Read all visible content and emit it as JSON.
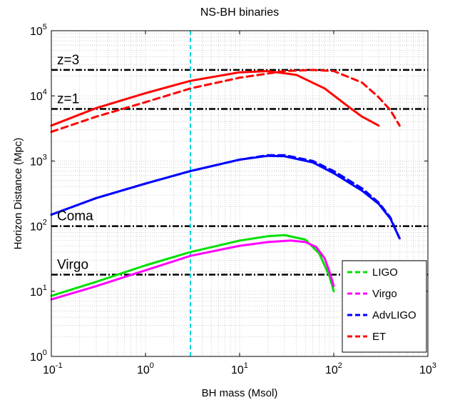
{
  "chart_data": {
    "type": "line",
    "title": "NS-BH binaries",
    "xlabel": "BH mass (Msol)",
    "ylabel": "Horizon Distance (Mpc)",
    "xscale": "log",
    "yscale": "log",
    "xlim": [
      0.1,
      1000
    ],
    "ylim": [
      1,
      100000
    ],
    "x_ticks": [
      {
        "base": "10",
        "exp": "-1"
      },
      {
        "base": "10",
        "exp": "0"
      },
      {
        "base": "10",
        "exp": "1"
      },
      {
        "base": "10",
        "exp": "2"
      },
      {
        "base": "10",
        "exp": "3"
      }
    ],
    "y_ticks": [
      {
        "base": "10",
        "exp": "0"
      },
      {
        "base": "10",
        "exp": "1"
      },
      {
        "base": "10",
        "exp": "2"
      },
      {
        "base": "10",
        "exp": "3"
      },
      {
        "base": "10",
        "exp": "4"
      },
      {
        "base": "10",
        "exp": "5"
      }
    ],
    "grid": true,
    "legend_position": "bottom-right",
    "reference_lines": [
      {
        "label": "z=3",
        "y": 25000
      },
      {
        "label": "z=1",
        "y": 6300
      },
      {
        "label": "Coma",
        "y": 100
      },
      {
        "label": "Virgo",
        "y": 18
      }
    ],
    "vertical_line": {
      "x": 3,
      "color": "#00d8d8"
    },
    "series": [
      {
        "name": "LIGO",
        "color": "#00e000",
        "legend_dashed": true,
        "lines": [
          {
            "style": "solid",
            "x": [
              0.1,
              0.3,
              1,
              3,
              10,
              20,
              30,
              50,
              70,
              90,
              100
            ],
            "y": [
              8.5,
              14,
              25,
              40,
              60,
              70,
              73,
              62,
              38,
              17,
              10
            ]
          }
        ]
      },
      {
        "name": "Virgo",
        "color": "#ff00ff",
        "legend_dashed": true,
        "lines": [
          {
            "style": "solid",
            "x": [
              0.1,
              0.3,
              1,
              3,
              10,
              20,
              35,
              50,
              65,
              80,
              90,
              100
            ],
            "y": [
              7.5,
              12,
              21,
              35,
              50,
              57,
              60,
              57,
              48,
              32,
              20,
              12
            ]
          }
        ]
      },
      {
        "name": "AdvLIGO",
        "color": "#0000ff",
        "legend_dashed": true,
        "lines": [
          {
            "style": "solid",
            "x": [
              0.1,
              0.3,
              1,
              3,
              10,
              20,
              30,
              60,
              100,
              200,
              300,
              400,
              500
            ],
            "y": [
              150,
              270,
              450,
              700,
              1050,
              1200,
              1180,
              950,
              650,
              350,
              220,
              130,
              65
            ]
          },
          {
            "style": "dashed",
            "x": [
              0.1,
              0.3,
              1,
              3,
              10,
              20,
              30,
              60,
              100,
              200,
              300,
              400,
              500
            ],
            "y": [
              150,
              270,
              450,
              700,
              1050,
              1230,
              1230,
              1000,
              700,
              380,
              230,
              135,
              65
            ]
          }
        ]
      },
      {
        "name": "ET",
        "color": "#ff0000",
        "legend_dashed": true,
        "lines": [
          {
            "style": "solid",
            "x": [
              0.1,
              0.3,
              1,
              3,
              10,
              20,
              40,
              80,
              150,
              200,
              300
            ],
            "y": [
              3500,
              6500,
              11000,
              17000,
              23000,
              24000,
              21000,
              13000,
              6500,
              4800,
              3500
            ]
          },
          {
            "style": "dashed",
            "x": [
              0.1,
              0.3,
              1,
              3,
              10,
              30,
              60,
              100,
              200,
              300,
              400,
              500
            ],
            "y": [
              2800,
              4800,
              8000,
              13000,
              19000,
              24000,
              25000,
              24000,
              16000,
              9500,
              6000,
              3500
            ]
          }
        ]
      }
    ]
  }
}
